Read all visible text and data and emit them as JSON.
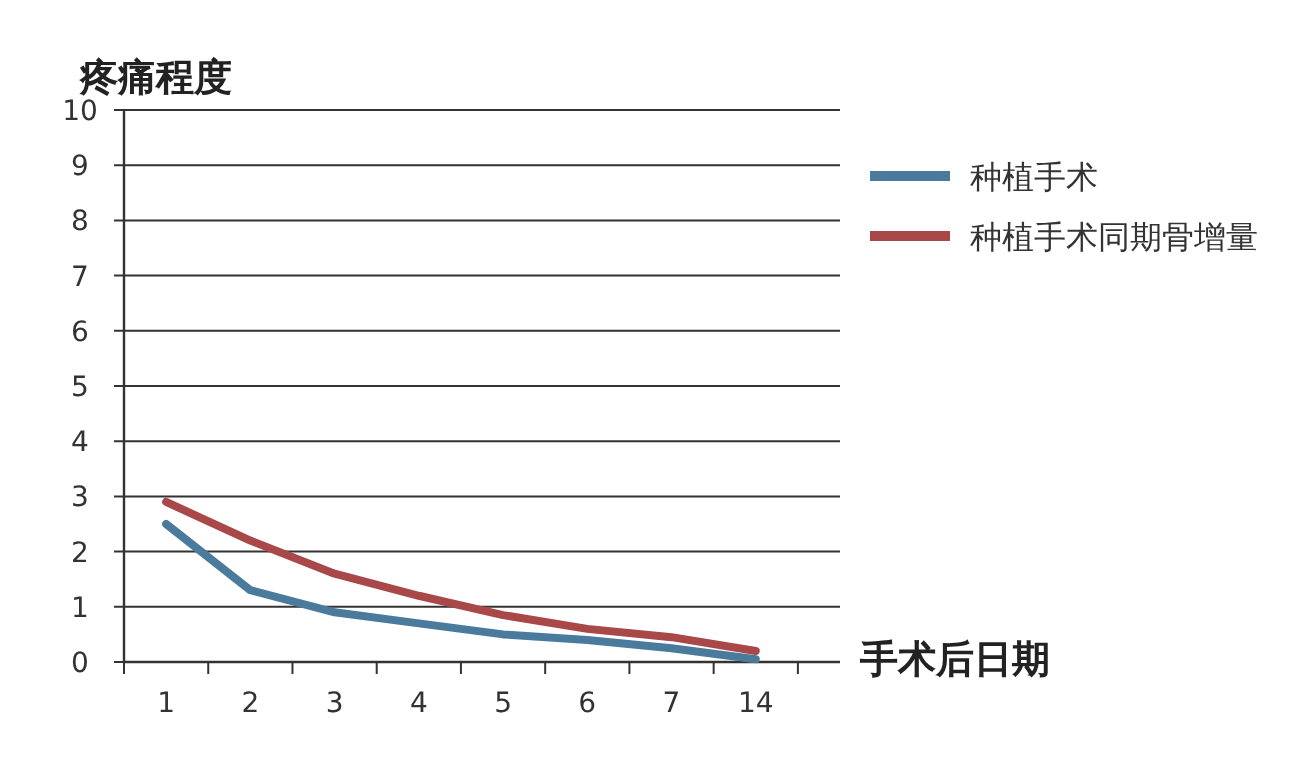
{
  "chart_data": {
    "type": "line",
    "xlabel": "手术后日期",
    "ylabel": "疼痛程度",
    "categories": [
      "1",
      "2",
      "3",
      "4",
      "5",
      "6",
      "7",
      "14"
    ],
    "series": [
      {
        "name": "种植手术",
        "color": "#4a7b9d",
        "values": [
          2.5,
          1.3,
          0.9,
          0.7,
          0.5,
          0.4,
          0.25,
          0.05
        ]
      },
      {
        "name": "种植手术同期骨增量",
        "color": "#a84848",
        "values": [
          2.9,
          2.2,
          1.6,
          1.2,
          0.85,
          0.6,
          0.45,
          0.2
        ]
      }
    ],
    "ylim": [
      0,
      10
    ],
    "yticks": [
      0,
      1,
      2,
      3,
      4,
      5,
      6,
      7,
      8,
      9,
      10
    ],
    "grid": "y",
    "legend": "top right",
    "marker": "none",
    "line_style": "solid"
  }
}
